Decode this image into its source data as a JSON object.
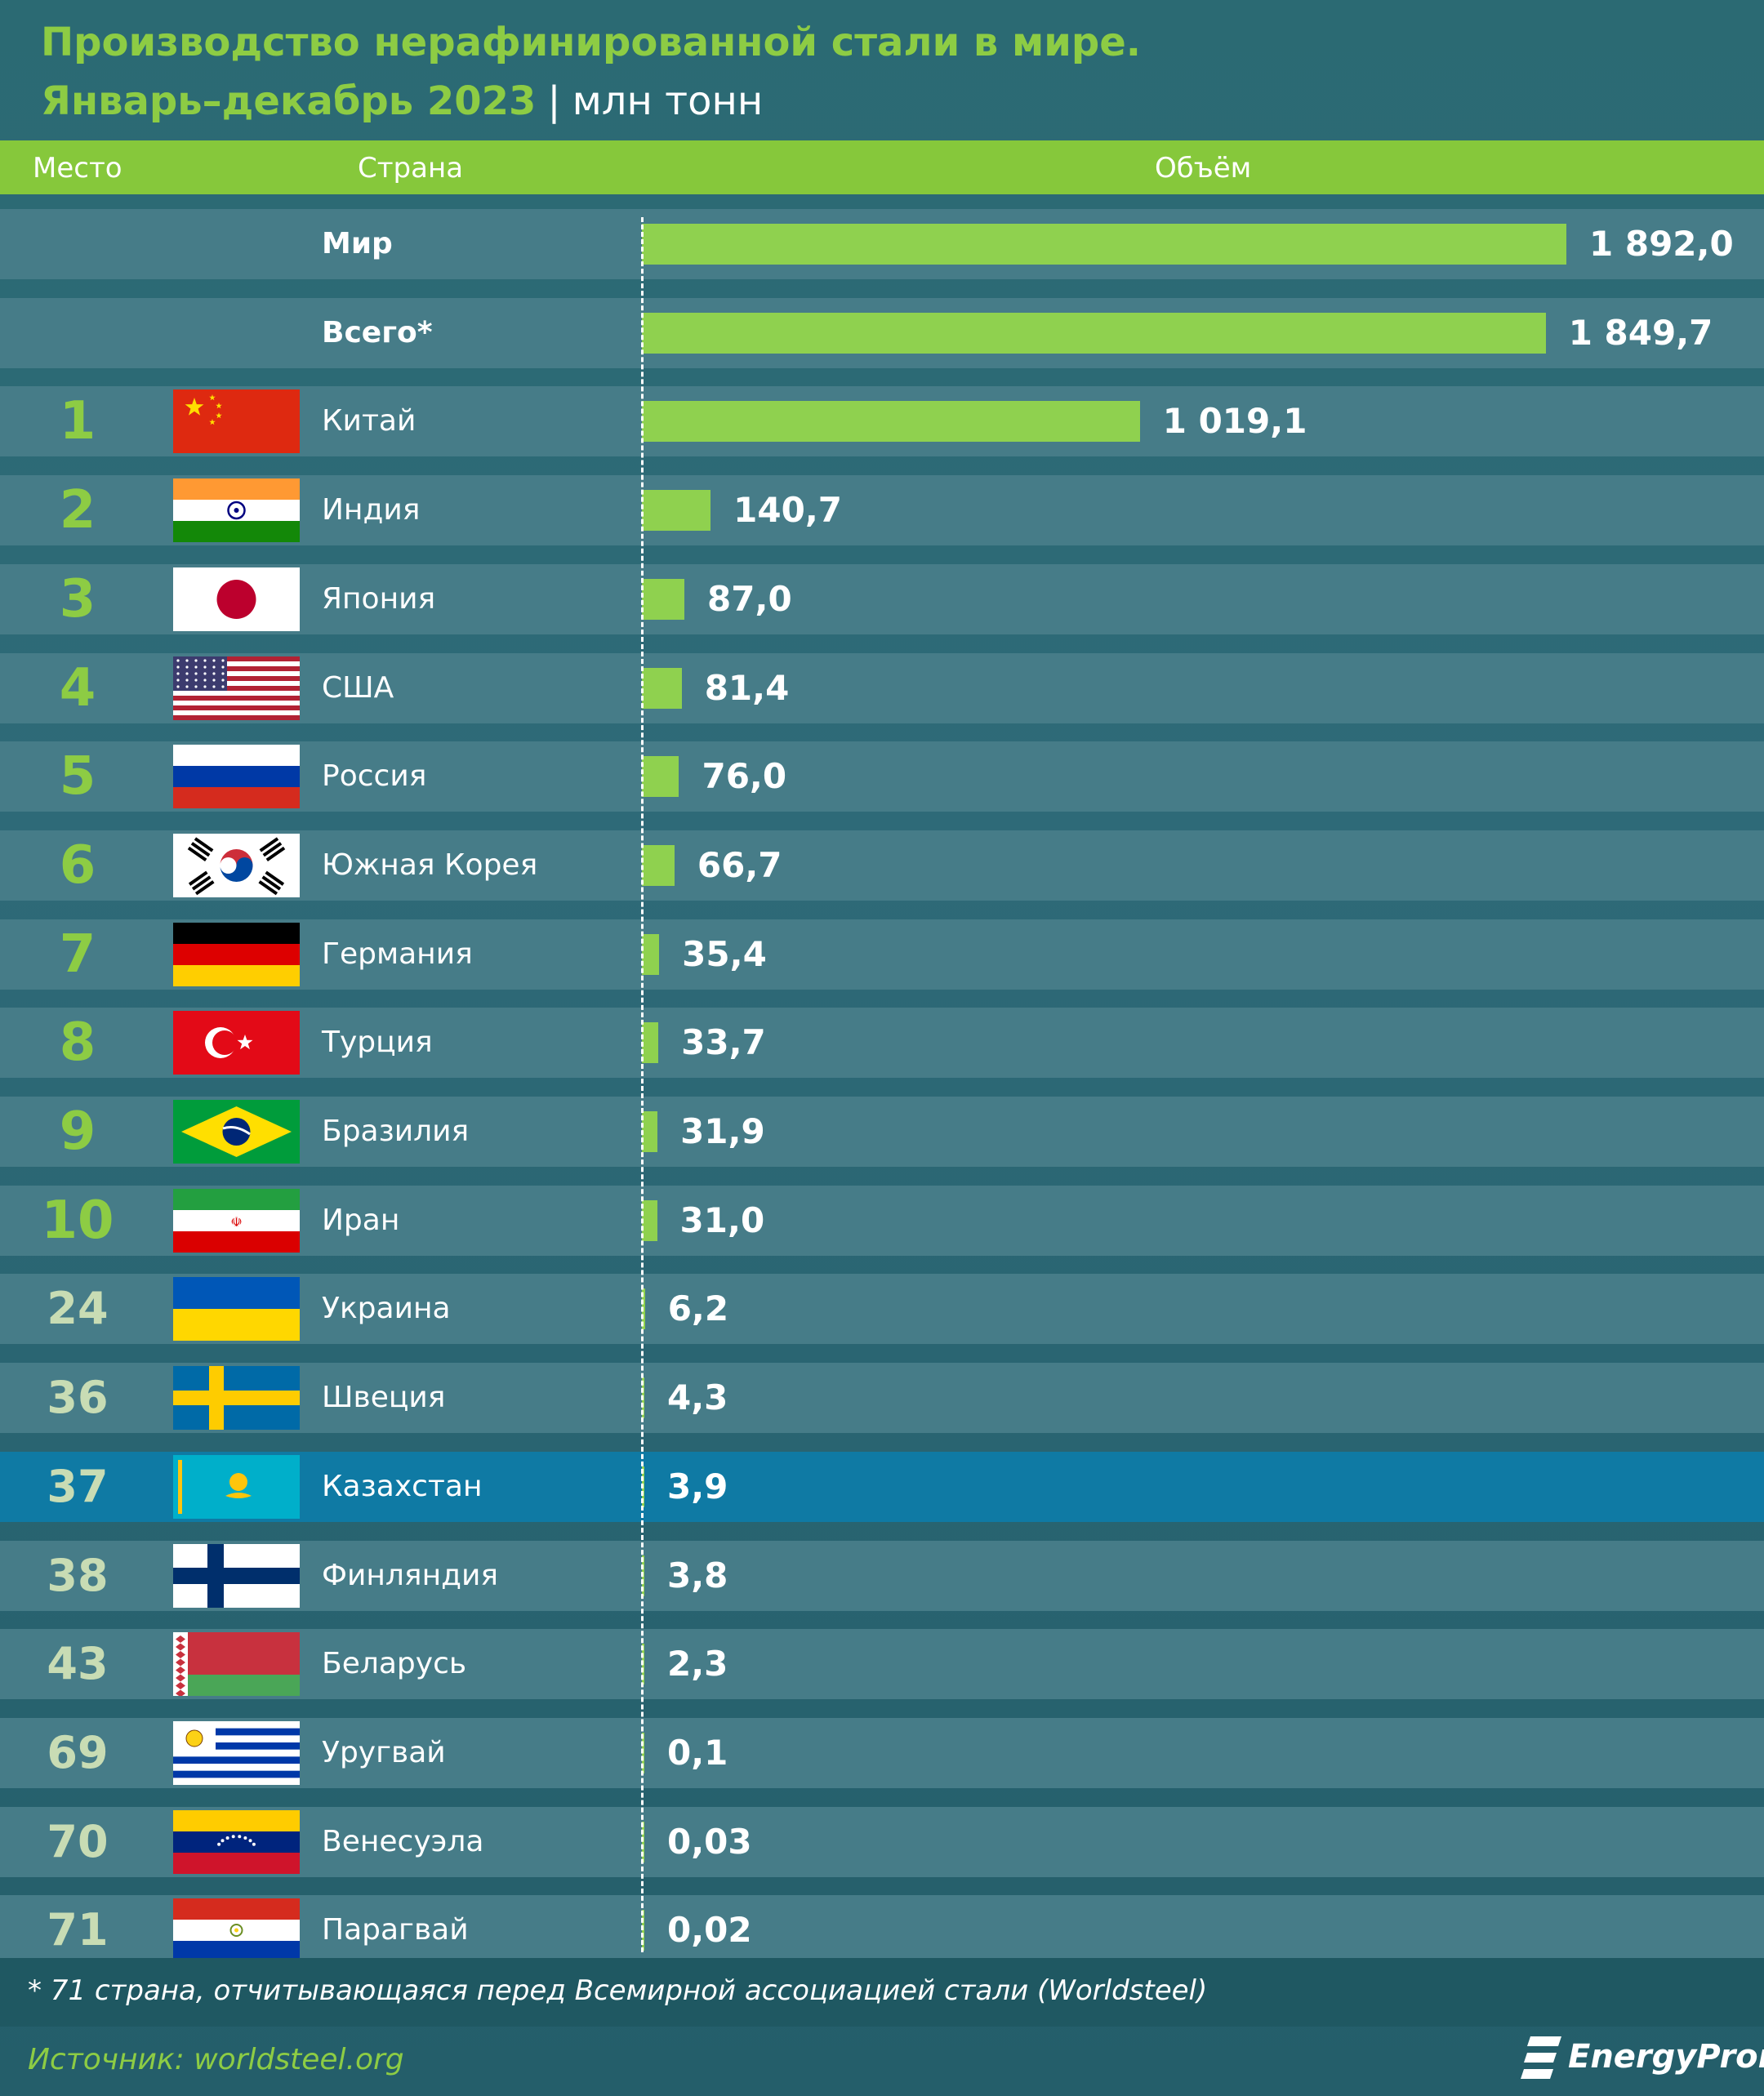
{
  "title": {
    "line1": "Производство нерафинированной стали в мире.",
    "period": "Январь–декабрь 2023",
    "separator": "|",
    "unit": "млн тонн"
  },
  "header": {
    "rank": "Место",
    "country": "Страна",
    "volume": "Объём"
  },
  "colors": {
    "accent": "#8dcc44",
    "bar": "#8fd14f",
    "row": "#467c88",
    "highlight": "#0f7aa4"
  },
  "chart_data": {
    "type": "bar",
    "categories": [
      "Мир",
      "Всего*",
      "Китай",
      "Индия",
      "Япония",
      "США",
      "Россия",
      "Южная Корея",
      "Германия",
      "Турция",
      "Бразилия",
      "Иран",
      "Украина",
      "Швеция",
      "Казахстан",
      "Финляндия",
      "Беларусь",
      "Уругвай",
      "Венесуэла",
      "Парагвай"
    ],
    "values": [
      1892.0,
      1849.7,
      1019.1,
      140.7,
      87.0,
      81.4,
      76.0,
      66.7,
      35.4,
      33.7,
      31.9,
      31.0,
      6.2,
      4.3,
      3.9,
      3.8,
      2.3,
      0.1,
      0.03,
      0.02
    ],
    "value_labels": [
      "1 892,0",
      "1 849,7",
      "1 019,1",
      "140,7",
      "87,0",
      "81,4",
      "76,0",
      "66,7",
      "35,4",
      "33,7",
      "31,9",
      "31,0",
      "6,2",
      "4,3",
      "3,9",
      "3,8",
      "2,3",
      "0,1",
      "0,03",
      "0,02"
    ],
    "ranks": [
      "",
      "",
      "1",
      "2",
      "3",
      "4",
      "5",
      "6",
      "7",
      "8",
      "9",
      "10",
      "24",
      "36",
      "37",
      "38",
      "43",
      "69",
      "70",
      "71"
    ],
    "flags": [
      "",
      "",
      "china-flag",
      "india-flag",
      "japan-flag",
      "usa-flag",
      "russia-flag",
      "south-korea-flag",
      "germany-flag",
      "turkey-flag",
      "brazil-flag",
      "iran-flag",
      "ukraine-flag",
      "sweden-flag",
      "kazakhstan-flag",
      "finland-flag",
      "belarus-flag",
      "uruguay-flag",
      "venezuela-flag",
      "paraguay-flag"
    ],
    "highlighted": "Казахстан",
    "orientation": "horizontal",
    "xlim": [
      0,
      1892.0
    ],
    "grid": false
  },
  "footnote": "* 71 страна, отчитывающаяся перед Всемирной ассоциацией стали (Worldsteel)",
  "source": "Источник: worldsteel.org",
  "logo": "EnergyProm"
}
